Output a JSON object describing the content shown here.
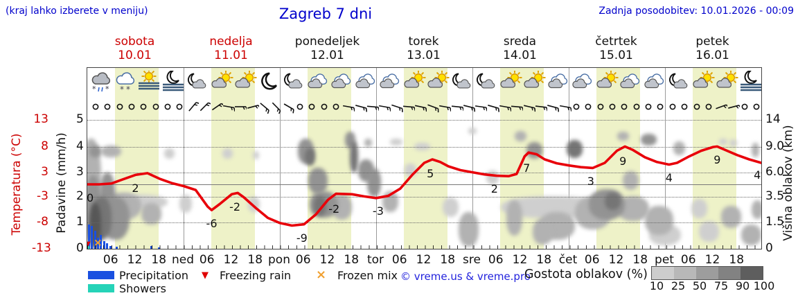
{
  "header": {
    "note": "(kraj lahko izberete v meniju)",
    "title": "Zagreb 7 dni",
    "updated": "Zadnja posodobitev: 10.01.2026 - 00:09"
  },
  "days": [
    {
      "name": "sobota",
      "date": "10.01",
      "weekend": true
    },
    {
      "name": "nedelja",
      "date": "11.01",
      "weekend": true
    },
    {
      "name": "ponedeljek",
      "date": "12.01",
      "weekend": false
    },
    {
      "name": "torek",
      "date": "13.01",
      "weekend": false
    },
    {
      "name": "sreda",
      "date": "14.01",
      "weekend": false
    },
    {
      "name": "četrtek",
      "date": "15.01",
      "weekend": false
    },
    {
      "name": "petek",
      "date": "16.01",
      "weekend": false
    }
  ],
  "x_axis": {
    "hour_labels": [
      "06",
      "12",
      "18"
    ],
    "day_abbrevs": [
      "ned",
      "pon",
      "tor",
      "sre",
      "čet",
      "pet"
    ]
  },
  "left_axis": {
    "temp_title": "Temperatura (°C)",
    "temp_ticks": [
      "13",
      "8",
      "3",
      "-3",
      "-8",
      "-13"
    ],
    "precip_title": "Padavine (mm/h)",
    "precip_ticks": [
      "5",
      "4",
      "3",
      "2",
      "1",
      "0"
    ]
  },
  "right_axis": {
    "title": "Višina oblakov (km)",
    "ticks": [
      "14",
      "9.0",
      "6.0",
      "3.5",
      "1.5",
      "0"
    ]
  },
  "legend": {
    "precipitation": "Precipitation",
    "showers": "Showers",
    "freezing_rain": "Freezing rain",
    "frozen_mix": "Frozen mix",
    "freezing_marker": "▼",
    "frozen_marker": "×",
    "copyright": "© vreme.us & vreme.pro"
  },
  "cloud_scale": {
    "title": "Gostota oblakov (%)",
    "labels": [
      "10",
      "25",
      "50",
      "75",
      "90",
      "100"
    ],
    "colors": [
      "#cdcdcd",
      "#b8b8b8",
      "#9d9d9d",
      "#828282",
      "#5e5e5e"
    ]
  },
  "colors": {
    "header_blue": "#0000cc",
    "temp_red": "#e8000a",
    "label_red": "#cc0000",
    "precip_blue": "#1a50e0",
    "showers_cyan": "#25d3b8",
    "frozen_orange": "#f0a030",
    "day_band_yellow": "#eef2c8",
    "cloud_grey": {
      "25": "#cfcfcf",
      "50": "#b2b2b2",
      "75": "#939393",
      "90": "#757575",
      "100": "#575757"
    }
  },
  "chart_data": {
    "type": "line",
    "title": "Zagreb 7 dni",
    "x_unit": "hours from 10.01 00:00, 24 h per day, 7 days",
    "temp_axis_ticks_c": [
      13,
      8,
      3,
      -3,
      -8,
      -13
    ],
    "precip_axis_ticks_mm_h": [
      5,
      4,
      3,
      2,
      1,
      0
    ],
    "cloud_height_axis_km": [
      14,
      9.0,
      6.0,
      3.5,
      1.5,
      0
    ],
    "temperature": {
      "name": "Temperatura (°C)",
      "points": [
        [
          0,
          0
        ],
        [
          3,
          0
        ],
        [
          6,
          0.2
        ],
        [
          9,
          1.2
        ],
        [
          12,
          2.2
        ],
        [
          15,
          2.6
        ],
        [
          18,
          1.3
        ],
        [
          21,
          0.3
        ],
        [
          24,
          -0.4
        ],
        [
          27,
          -1.3
        ],
        [
          30,
          -5.2
        ],
        [
          31,
          -6
        ],
        [
          33,
          -4.6
        ],
        [
          36,
          -2.3
        ],
        [
          37.5,
          -2
        ],
        [
          39,
          -3
        ],
        [
          42,
          -5.5
        ],
        [
          45,
          -7.8
        ],
        [
          48,
          -9
        ],
        [
          51,
          -9.6
        ],
        [
          54,
          -9.3
        ],
        [
          57,
          -7
        ],
        [
          60,
          -3.6
        ],
        [
          62,
          -2.2
        ],
        [
          66,
          -2.3
        ],
        [
          69,
          -2.8
        ],
        [
          72,
          -3.2
        ],
        [
          75,
          -2.7
        ],
        [
          78,
          -1
        ],
        [
          81,
          2.2
        ],
        [
          84,
          5
        ],
        [
          86,
          5.8
        ],
        [
          88,
          5.2
        ],
        [
          90,
          4.2
        ],
        [
          93,
          3.3
        ],
        [
          96,
          2.8
        ],
        [
          99,
          2.3
        ],
        [
          102,
          2
        ],
        [
          105,
          1.9
        ],
        [
          107,
          2.4
        ],
        [
          109,
          6.5
        ],
        [
          110,
          7.4
        ],
        [
          112,
          7
        ],
        [
          114,
          5.8
        ],
        [
          117,
          4.9
        ],
        [
          120,
          4.4
        ],
        [
          123,
          4
        ],
        [
          126,
          3.8
        ],
        [
          129,
          5
        ],
        [
          132,
          7.8
        ],
        [
          134,
          8.8
        ],
        [
          136,
          8
        ],
        [
          139,
          6.3
        ],
        [
          142,
          5.2
        ],
        [
          145,
          4.6
        ],
        [
          147,
          5
        ],
        [
          150,
          6.5
        ],
        [
          153,
          7.8
        ],
        [
          156,
          8.7
        ],
        [
          157,
          8.8
        ],
        [
          159,
          8
        ],
        [
          162,
          6.8
        ],
        [
          165,
          5.8
        ],
        [
          168,
          5
        ]
      ]
    },
    "temp_point_labels": [
      {
        "hour": 0.7,
        "text": "0"
      },
      {
        "hour": 12,
        "text": "2"
      },
      {
        "hour": 31,
        "text": "-6"
      },
      {
        "hour": 36.8,
        "text": "-2"
      },
      {
        "hour": 53.5,
        "text": "-9"
      },
      {
        "hour": 61.5,
        "text": "-2"
      },
      {
        "hour": 72.5,
        "text": "-3"
      },
      {
        "hour": 85.5,
        "text": "5"
      },
      {
        "hour": 101.5,
        "text": "2"
      },
      {
        "hour": 109.5,
        "text": "7"
      },
      {
        "hour": 125.5,
        "text": "3"
      },
      {
        "hour": 133.5,
        "text": "9"
      },
      {
        "hour": 145,
        "text": "4"
      },
      {
        "hour": 157,
        "text": "9"
      },
      {
        "hour": 167,
        "text": "4"
      }
    ],
    "precipitation_mm_h": [
      {
        "hour": 0.4,
        "mm": 0.95
      },
      {
        "hour": 1.1,
        "mm": 0.9
      },
      {
        "hour": 1.9,
        "mm": 0.7
      },
      {
        "hour": 2.6,
        "mm": 0.42
      },
      {
        "hour": 3.4,
        "mm": 0.55
      },
      {
        "hour": 4.2,
        "mm": 0.3
      },
      {
        "hour": 4.9,
        "mm": 0.22
      },
      {
        "hour": 5.7,
        "mm": 0.1
      },
      {
        "hour": 7.4,
        "mm": 0.08
      },
      {
        "hour": 16,
        "mm": 0.12
      },
      {
        "hour": 17.8,
        "mm": 0.06
      }
    ],
    "markers": {
      "freezing_rain_hours": [
        0.15
      ],
      "frozen_mix_hours": [
        2.6
      ]
    },
    "weather_icons": [
      "rain-snow",
      "snow",
      "sun-fog",
      "moon-fog",
      "moon-cloud",
      "sun-cloud",
      "sun-cloud",
      "moon",
      "moon-cloud",
      "cloud",
      "cloud",
      "cloud",
      "cloud",
      "sun-cloud",
      "sun-cloud",
      "moon-cloud",
      "moon-cloud",
      "sun-cloud",
      "sun-cloud",
      "cloud",
      "cloud",
      "sun-cloud",
      "cloud",
      "cloud",
      "moon-cloud",
      "sun-cloud",
      "sun-cloud",
      "moon-fog"
    ],
    "wind_3h": [
      "c",
      "c",
      "c",
      "c",
      "c",
      "c",
      "c",
      "c",
      "b40",
      "b45",
      "b55",
      "b100",
      "b90",
      "b75",
      "b130",
      "b135",
      "b120",
      "c",
      "c",
      "c",
      "c",
      "b100",
      "b105",
      "b95",
      "b100",
      "b108",
      "b95",
      "b102",
      "b110",
      "b100",
      "b96",
      "b104",
      "b98",
      "b106",
      "b100",
      "b95",
      "b103",
      "b97",
      "b105",
      "b100",
      "c",
      "c",
      "c",
      "c",
      "c",
      "c",
      "c",
      "c",
      "c",
      "c",
      "c",
      "c",
      "b70",
      "b75",
      "c",
      "c"
    ],
    "cloud_blobs_h_km_w_hkm_pct": [
      [
        1,
        6,
        5,
        9,
        50
      ],
      [
        1.5,
        3,
        4,
        5.5,
        75
      ],
      [
        2,
        1.5,
        3,
        3,
        100
      ],
      [
        3.5,
        2,
        5,
        3,
        90
      ],
      [
        5,
        3.5,
        4,
        5,
        75
      ],
      [
        7,
        2,
        7,
        3,
        75
      ],
      [
        9,
        2.8,
        9,
        2.2,
        50
      ],
      [
        13,
        3.1,
        14,
        1.2,
        25
      ],
      [
        6,
        8.5,
        5,
        1.5,
        50
      ],
      [
        2,
        8.5,
        3,
        1.5,
        75
      ],
      [
        16,
        2.2,
        5,
        1.6,
        50
      ],
      [
        20.5,
        8.2,
        2.5,
        1.2,
        25
      ],
      [
        24.5,
        3,
        3,
        1.5,
        25
      ],
      [
        35,
        8.2,
        2.5,
        1.2,
        25
      ],
      [
        41.5,
        2.9,
        3,
        1.2,
        25
      ],
      [
        42,
        8,
        1.5,
        1,
        25
      ],
      [
        54.5,
        8.8,
        4,
        3.5,
        75
      ],
      [
        55.5,
        7.8,
        2.5,
        2,
        90
      ],
      [
        57.5,
        5.2,
        5,
        2.8,
        75
      ],
      [
        59,
        3,
        7,
        2.2,
        75
      ],
      [
        58,
        2.8,
        3,
        1.5,
        90
      ],
      [
        63.5,
        2.7,
        5,
        2,
        50
      ],
      [
        65.5,
        10.3,
        2.5,
        3,
        75
      ],
      [
        66.5,
        8,
        2,
        4,
        90
      ],
      [
        69.5,
        6.3,
        4,
        2.5,
        75
      ],
      [
        71.5,
        5,
        3.5,
        3,
        75
      ],
      [
        70,
        9.8,
        2,
        1.5,
        50
      ],
      [
        75.5,
        3.2,
        4,
        1.8,
        50
      ],
      [
        77,
        9.9,
        3,
        1.2,
        25
      ],
      [
        83.5,
        9.2,
        4,
        1.2,
        25
      ],
      [
        80.5,
        6.3,
        3,
        1.5,
        25
      ],
      [
        90.5,
        2.7,
        4,
        1.5,
        25
      ],
      [
        95,
        1.2,
        5,
        2.2,
        50
      ],
      [
        96,
        12,
        2,
        1.3,
        25
      ],
      [
        101,
        5.5,
        3,
        1.5,
        25
      ],
      [
        106.5,
        2,
        4,
        2.5,
        50
      ],
      [
        108,
        11,
        3,
        2,
        50
      ],
      [
        111.5,
        8.8,
        4,
        2.3,
        75
      ],
      [
        116,
        2.7,
        26,
        1.8,
        25
      ],
      [
        117,
        1.4,
        9,
        1.8,
        50
      ],
      [
        113.5,
        1,
        5,
        1.5,
        50
      ],
      [
        121.5,
        9,
        4,
        2.6,
        90
      ],
      [
        126,
        2.3,
        9,
        2.4,
        50
      ],
      [
        129.5,
        3,
        9,
        2.6,
        75
      ],
      [
        131,
        3.2,
        4,
        1.5,
        90
      ],
      [
        133.5,
        11,
        3,
        1.6,
        50
      ],
      [
        135.5,
        5.2,
        4,
        2,
        50
      ],
      [
        136,
        2.6,
        8,
        2,
        50
      ],
      [
        140,
        10.3,
        4,
        2.2,
        75
      ],
      [
        142.5,
        1.8,
        7,
        2,
        50
      ],
      [
        144,
        0.8,
        8,
        1.2,
        25
      ],
      [
        147.5,
        9,
        3,
        2,
        50
      ],
      [
        152.5,
        2.6,
        4,
        1.5,
        25
      ],
      [
        155,
        1,
        5,
        1.2,
        25
      ],
      [
        158.5,
        10,
        2,
        1.2,
        25
      ],
      [
        160.5,
        2,
        5,
        1.6,
        50
      ],
      [
        161,
        9.7,
        2,
        1.3,
        25
      ],
      [
        165.5,
        0.8,
        5,
        1.2,
        50
      ],
      [
        166.5,
        8.8,
        2,
        2,
        50
      ],
      [
        167,
        2.5,
        3,
        1.5,
        50
      ]
    ]
  }
}
